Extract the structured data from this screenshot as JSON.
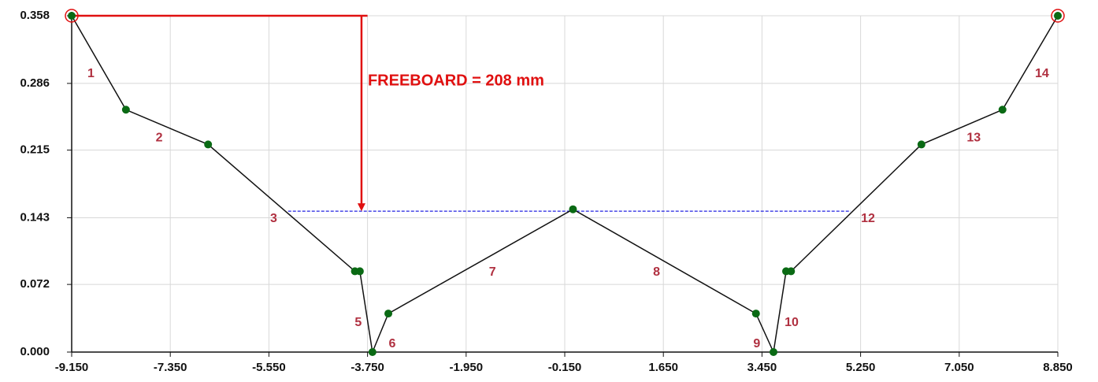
{
  "chart_data": {
    "type": "line",
    "x": [
      -9.15,
      -8.16,
      -6.66,
      -3.98,
      -3.89,
      -3.66,
      -3.37,
      0.0,
      3.34,
      3.66,
      3.89,
      3.98,
      6.36,
      7.84,
      8.85
    ],
    "series": [
      {
        "color": "#111111",
        "marker_color": "#0a6a14",
        "values": [
          0.358,
          0.258,
          0.221,
          0.086,
          0.086,
          0,
          0.041,
          0.152,
          0.041,
          0,
          0.086,
          0.086,
          0.221,
          0.258,
          0.358
        ]
      }
    ],
    "segment_labels": [
      "1",
      "2",
      "3",
      null,
      "5",
      "6",
      "7",
      "8",
      "9",
      "10",
      null,
      "12",
      "13",
      "14"
    ],
    "xlim": [
      -9.15,
      8.85
    ],
    "xticks": [
      {
        "value": -9.15,
        "label": "-9.150"
      },
      {
        "value": -7.35,
        "label": "-7.350"
      },
      {
        "value": -5.55,
        "label": "-5.550"
      },
      {
        "value": -3.75,
        "label": "-3.750"
      },
      {
        "value": -1.95,
        "label": "-1.950"
      },
      {
        "value": -0.15,
        "label": "-0.150"
      },
      {
        "value": 1.65,
        "label": "1.650"
      },
      {
        "value": 3.45,
        "label": "3.450"
      },
      {
        "value": 5.25,
        "label": "5.250"
      },
      {
        "value": 7.05,
        "label": "7.050"
      },
      {
        "value": 8.85,
        "label": "8.850"
      }
    ],
    "ylim": [
      0,
      0.358
    ],
    "yticks": [
      {
        "value": 0,
        "label": "0.000"
      },
      {
        "value": 0.072,
        "label": "0.072"
      },
      {
        "value": 0.143,
        "label": "0.143"
      },
      {
        "value": 0.215,
        "label": "0.215"
      },
      {
        "value": 0.286,
        "label": "0.286"
      },
      {
        "value": 0.358,
        "label": "0.358"
      }
    ],
    "grid": true,
    "water_level": {
      "y": 0.15,
      "x": [
        -5.2,
        5.07
      ],
      "color": "#2020e0"
    },
    "freeboard": {
      "label": "FREEBOARD = 208 mm",
      "x": -3.86,
      "line_end_x": -3.75,
      "color": "#e01010"
    }
  }
}
